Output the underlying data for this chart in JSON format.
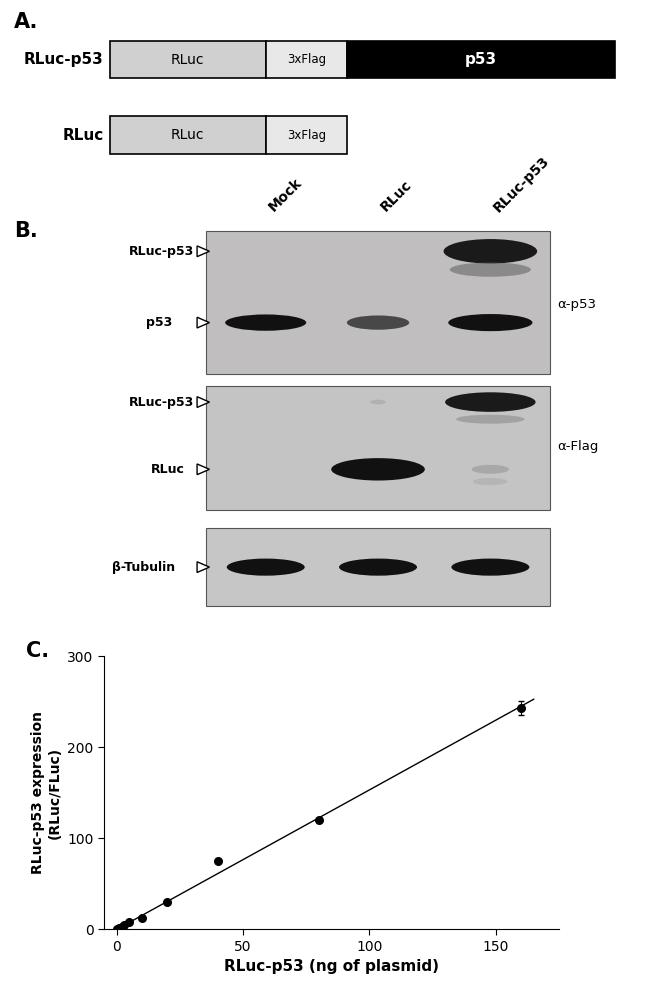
{
  "panel_A": {
    "row1_label": "RLuc-p53",
    "row2_label": "RLuc",
    "rluc_box_color": "#d0d0d0",
    "flag_box_color": "#e8e8e8",
    "p53_box_color": "#000000",
    "p53_text_color": "#ffffff",
    "rluc_text": "RLuc",
    "flag_text": "3xFlag",
    "p53_text": "p53"
  },
  "panel_B": {
    "col_labels": [
      "Mock",
      "RLuc",
      "RLuc-p53"
    ],
    "right_labels": [
      "α-p53",
      "α-Flag"
    ],
    "blot_bg": "#c2c2c2",
    "blot_bg2": "#c8c8c8"
  },
  "panel_C": {
    "x_data": [
      0,
      1,
      2,
      3,
      5,
      10,
      20,
      40,
      80,
      160
    ],
    "y_data": [
      0,
      1.5,
      3,
      5,
      8,
      12,
      30,
      75,
      120,
      243
    ],
    "y_err": [
      0,
      0,
      0,
      0,
      0,
      0,
      0,
      0,
      2,
      8
    ],
    "xlabel": "RLuc-p53 (ng of plasmid)",
    "ylabel": "RLuc-p53 expression\n(RLuc/FLuc)",
    "ylim": [
      0,
      300
    ],
    "xlim": [
      -5,
      175
    ],
    "yticks": [
      0,
      100,
      200,
      300
    ],
    "xticks": [
      0,
      50,
      100,
      150
    ]
  }
}
